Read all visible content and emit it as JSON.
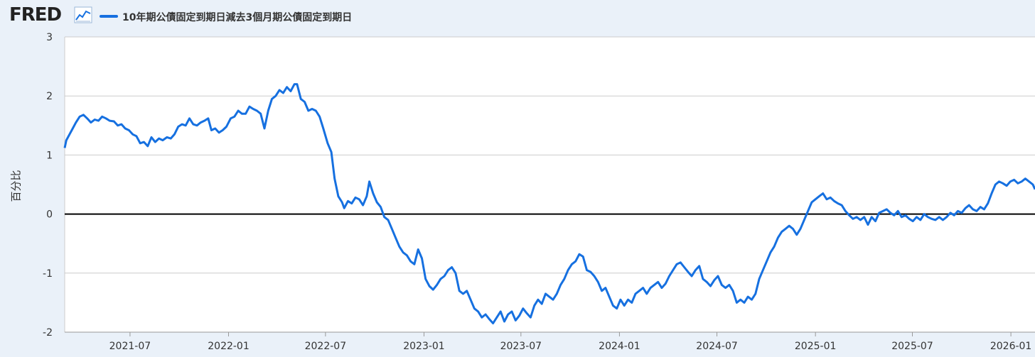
{
  "header": {
    "logo_text": "FRED",
    "logo_icon": "chart-line-icon",
    "legend_label": "10年期公債固定到期日減去3個月期公債固定到期日"
  },
  "colors": {
    "series": "#1670e0",
    "background": "#eaf1f9",
    "plot_background": "#ffffff",
    "grid": "#cccccc",
    "zero_line": "#000000"
  },
  "chart_data": {
    "type": "line",
    "ylabel": "百分比",
    "xlabel": "",
    "ylim": [
      -2,
      3
    ],
    "xlim": [
      "2021-03-01",
      "2026-02-15"
    ],
    "y_ticks": [
      {
        "value": 3,
        "label": "3"
      },
      {
        "value": 2,
        "label": "2"
      },
      {
        "value": 1,
        "label": "1"
      },
      {
        "value": 0,
        "label": "0"
      },
      {
        "value": -1,
        "label": "-1"
      },
      {
        "value": -2,
        "label": "-2"
      }
    ],
    "x_ticks": [
      {
        "date": "2021-07-01",
        "label": "2021-07"
      },
      {
        "date": "2022-01-01",
        "label": "2022-01"
      },
      {
        "date": "2022-07-01",
        "label": "2022-07"
      },
      {
        "date": "2023-01-01",
        "label": "2023-01"
      },
      {
        "date": "2023-07-01",
        "label": "2023-07"
      },
      {
        "date": "2024-01-01",
        "label": "2024-01"
      },
      {
        "date": "2024-07-01",
        "label": "2024-07"
      },
      {
        "date": "2025-01-01",
        "label": "2025-01"
      },
      {
        "date": "2025-07-01",
        "label": "2025-07"
      },
      {
        "date": "2026-01-01",
        "label": "2026-01"
      }
    ],
    "grid": true,
    "series": [
      {
        "name": "10年期公債固定到期日減去3個月期公債固定到期日",
        "points": [
          [
            "2021-03-01",
            1.12
          ],
          [
            "2021-03-04",
            1.25
          ],
          [
            "2021-03-10",
            1.35
          ],
          [
            "2021-03-16",
            1.45
          ],
          [
            "2021-03-22",
            1.55
          ],
          [
            "2021-03-29",
            1.65
          ],
          [
            "2021-04-05",
            1.68
          ],
          [
            "2021-04-12",
            1.62
          ],
          [
            "2021-04-19",
            1.55
          ],
          [
            "2021-04-26",
            1.6
          ],
          [
            "2021-05-03",
            1.58
          ],
          [
            "2021-05-10",
            1.65
          ],
          [
            "2021-05-17",
            1.62
          ],
          [
            "2021-05-24",
            1.58
          ],
          [
            "2021-06-01",
            1.57
          ],
          [
            "2021-06-08",
            1.5
          ],
          [
            "2021-06-15",
            1.52
          ],
          [
            "2021-06-22",
            1.45
          ],
          [
            "2021-06-29",
            1.42
          ],
          [
            "2021-07-06",
            1.35
          ],
          [
            "2021-07-13",
            1.32
          ],
          [
            "2021-07-20",
            1.2
          ],
          [
            "2021-07-27",
            1.22
          ],
          [
            "2021-08-03",
            1.15
          ],
          [
            "2021-08-10",
            1.3
          ],
          [
            "2021-08-17",
            1.22
          ],
          [
            "2021-08-24",
            1.28
          ],
          [
            "2021-08-31",
            1.25
          ],
          [
            "2021-09-08",
            1.3
          ],
          [
            "2021-09-15",
            1.28
          ],
          [
            "2021-09-22",
            1.35
          ],
          [
            "2021-09-29",
            1.48
          ],
          [
            "2021-10-06",
            1.52
          ],
          [
            "2021-10-13",
            1.5
          ],
          [
            "2021-10-20",
            1.62
          ],
          [
            "2021-10-27",
            1.52
          ],
          [
            "2021-11-03",
            1.5
          ],
          [
            "2021-11-10",
            1.55
          ],
          [
            "2021-11-17",
            1.58
          ],
          [
            "2021-11-24",
            1.62
          ],
          [
            "2021-11-30",
            1.42
          ],
          [
            "2021-12-07",
            1.45
          ],
          [
            "2021-12-14",
            1.38
          ],
          [
            "2021-12-21",
            1.42
          ],
          [
            "2021-12-28",
            1.48
          ],
          [
            "2022-01-05",
            1.62
          ],
          [
            "2022-01-12",
            1.65
          ],
          [
            "2022-01-19",
            1.75
          ],
          [
            "2022-01-26",
            1.7
          ],
          [
            "2022-02-02",
            1.7
          ],
          [
            "2022-02-09",
            1.82
          ],
          [
            "2022-02-16",
            1.78
          ],
          [
            "2022-02-23",
            1.75
          ],
          [
            "2022-03-02",
            1.7
          ],
          [
            "2022-03-09",
            1.45
          ],
          [
            "2022-03-16",
            1.75
          ],
          [
            "2022-03-23",
            1.95
          ],
          [
            "2022-03-30",
            2.0
          ],
          [
            "2022-04-06",
            2.1
          ],
          [
            "2022-04-13",
            2.05
          ],
          [
            "2022-04-20",
            2.15
          ],
          [
            "2022-04-27",
            2.08
          ],
          [
            "2022-05-04",
            2.2
          ],
          [
            "2022-05-09",
            2.2
          ],
          [
            "2022-05-16",
            1.95
          ],
          [
            "2022-05-23",
            1.9
          ],
          [
            "2022-05-30",
            1.75
          ],
          [
            "2022-06-06",
            1.78
          ],
          [
            "2022-06-13",
            1.75
          ],
          [
            "2022-06-20",
            1.65
          ],
          [
            "2022-06-27",
            1.45
          ],
          [
            "2022-07-05",
            1.2
          ],
          [
            "2022-07-12",
            1.05
          ],
          [
            "2022-07-18",
            0.6
          ],
          [
            "2022-07-25",
            0.3
          ],
          [
            "2022-08-01",
            0.2
          ],
          [
            "2022-08-05",
            0.1
          ],
          [
            "2022-08-12",
            0.22
          ],
          [
            "2022-08-19",
            0.18
          ],
          [
            "2022-08-26",
            0.28
          ],
          [
            "2022-09-02",
            0.25
          ],
          [
            "2022-09-09",
            0.15
          ],
          [
            "2022-09-16",
            0.3
          ],
          [
            "2022-09-21",
            0.55
          ],
          [
            "2022-09-28",
            0.35
          ],
          [
            "2022-10-05",
            0.2
          ],
          [
            "2022-10-12",
            0.12
          ],
          [
            "2022-10-19",
            -0.05
          ],
          [
            "2022-10-26",
            -0.1
          ],
          [
            "2022-11-02",
            -0.25
          ],
          [
            "2022-11-09",
            -0.4
          ],
          [
            "2022-11-16",
            -0.55
          ],
          [
            "2022-11-23",
            -0.65
          ],
          [
            "2022-11-30",
            -0.7
          ],
          [
            "2022-12-07",
            -0.8
          ],
          [
            "2022-12-14",
            -0.85
          ],
          [
            "2022-12-21",
            -0.6
          ],
          [
            "2022-12-28",
            -0.75
          ],
          [
            "2023-01-04",
            -1.1
          ],
          [
            "2023-01-11",
            -1.22
          ],
          [
            "2023-01-18",
            -1.28
          ],
          [
            "2023-01-25",
            -1.2
          ],
          [
            "2023-02-01",
            -1.1
          ],
          [
            "2023-02-08",
            -1.05
          ],
          [
            "2023-02-15",
            -0.95
          ],
          [
            "2023-02-22",
            -0.9
          ],
          [
            "2023-03-01",
            -1.0
          ],
          [
            "2023-03-08",
            -1.3
          ],
          [
            "2023-03-15",
            -1.35
          ],
          [
            "2023-03-22",
            -1.3
          ],
          [
            "2023-03-29",
            -1.45
          ],
          [
            "2023-04-05",
            -1.6
          ],
          [
            "2023-04-12",
            -1.65
          ],
          [
            "2023-04-19",
            -1.75
          ],
          [
            "2023-04-26",
            -1.7
          ],
          [
            "2023-05-03",
            -1.78
          ],
          [
            "2023-05-10",
            -1.85
          ],
          [
            "2023-05-17",
            -1.75
          ],
          [
            "2023-05-24",
            -1.65
          ],
          [
            "2023-05-31",
            -1.82
          ],
          [
            "2023-06-07",
            -1.7
          ],
          [
            "2023-06-14",
            -1.65
          ],
          [
            "2023-06-21",
            -1.8
          ],
          [
            "2023-06-28",
            -1.72
          ],
          [
            "2023-07-05",
            -1.6
          ],
          [
            "2023-07-12",
            -1.68
          ],
          [
            "2023-07-19",
            -1.75
          ],
          [
            "2023-07-26",
            -1.55
          ],
          [
            "2023-08-02",
            -1.45
          ],
          [
            "2023-08-09",
            -1.52
          ],
          [
            "2023-08-16",
            -1.35
          ],
          [
            "2023-08-23",
            -1.4
          ],
          [
            "2023-08-30",
            -1.45
          ],
          [
            "2023-09-06",
            -1.35
          ],
          [
            "2023-09-13",
            -1.2
          ],
          [
            "2023-09-20",
            -1.1
          ],
          [
            "2023-09-27",
            -0.95
          ],
          [
            "2023-10-04",
            -0.85
          ],
          [
            "2023-10-11",
            -0.8
          ],
          [
            "2023-10-18",
            -0.68
          ],
          [
            "2023-10-25",
            -0.72
          ],
          [
            "2023-11-01",
            -0.95
          ],
          [
            "2023-11-08",
            -0.98
          ],
          [
            "2023-11-15",
            -1.05
          ],
          [
            "2023-11-22",
            -1.15
          ],
          [
            "2023-11-29",
            -1.3
          ],
          [
            "2023-12-06",
            -1.25
          ],
          [
            "2023-12-13",
            -1.4
          ],
          [
            "2023-12-20",
            -1.55
          ],
          [
            "2023-12-27",
            -1.6
          ],
          [
            "2024-01-03",
            -1.45
          ],
          [
            "2024-01-10",
            -1.55
          ],
          [
            "2024-01-17",
            -1.45
          ],
          [
            "2024-01-24",
            -1.5
          ],
          [
            "2024-01-31",
            -1.35
          ],
          [
            "2024-02-07",
            -1.3
          ],
          [
            "2024-02-14",
            -1.25
          ],
          [
            "2024-02-21",
            -1.35
          ],
          [
            "2024-02-28",
            -1.25
          ],
          [
            "2024-03-06",
            -1.2
          ],
          [
            "2024-03-13",
            -1.15
          ],
          [
            "2024-03-20",
            -1.25
          ],
          [
            "2024-03-27",
            -1.18
          ],
          [
            "2024-04-03",
            -1.05
          ],
          [
            "2024-04-10",
            -0.95
          ],
          [
            "2024-04-17",
            -0.85
          ],
          [
            "2024-04-24",
            -0.82
          ],
          [
            "2024-05-01",
            -0.9
          ],
          [
            "2024-05-08",
            -0.98
          ],
          [
            "2024-05-15",
            -1.05
          ],
          [
            "2024-05-22",
            -0.95
          ],
          [
            "2024-05-29",
            -0.88
          ],
          [
            "2024-06-05",
            -1.1
          ],
          [
            "2024-06-12",
            -1.15
          ],
          [
            "2024-06-19",
            -1.22
          ],
          [
            "2024-06-26",
            -1.12
          ],
          [
            "2024-07-03",
            -1.05
          ],
          [
            "2024-07-10",
            -1.2
          ],
          [
            "2024-07-17",
            -1.25
          ],
          [
            "2024-07-24",
            -1.2
          ],
          [
            "2024-07-31",
            -1.3
          ],
          [
            "2024-08-07",
            -1.5
          ],
          [
            "2024-08-14",
            -1.45
          ],
          [
            "2024-08-21",
            -1.5
          ],
          [
            "2024-08-28",
            -1.4
          ],
          [
            "2024-09-04",
            -1.45
          ],
          [
            "2024-09-11",
            -1.35
          ],
          [
            "2024-09-18",
            -1.1
          ],
          [
            "2024-09-25",
            -0.95
          ],
          [
            "2024-10-02",
            -0.8
          ],
          [
            "2024-10-09",
            -0.65
          ],
          [
            "2024-10-16",
            -0.55
          ],
          [
            "2024-10-23",
            -0.4
          ],
          [
            "2024-10-30",
            -0.3
          ],
          [
            "2024-11-06",
            -0.25
          ],
          [
            "2024-11-13",
            -0.2
          ],
          [
            "2024-11-20",
            -0.25
          ],
          [
            "2024-11-27",
            -0.35
          ],
          [
            "2024-12-04",
            -0.25
          ],
          [
            "2024-12-11",
            -0.1
          ],
          [
            "2024-12-18",
            0.05
          ],
          [
            "2024-12-25",
            0.2
          ],
          [
            "2025-01-01",
            0.25
          ],
          [
            "2025-01-08",
            0.3
          ],
          [
            "2025-01-15",
            0.35
          ],
          [
            "2025-01-22",
            0.25
          ],
          [
            "2025-01-29",
            0.28
          ],
          [
            "2025-02-05",
            0.22
          ],
          [
            "2025-02-12",
            0.18
          ],
          [
            "2025-02-19",
            0.15
          ],
          [
            "2025-02-26",
            0.05
          ],
          [
            "2025-03-05",
            -0.02
          ],
          [
            "2025-03-12",
            -0.08
          ],
          [
            "2025-03-19",
            -0.05
          ],
          [
            "2025-03-26",
            -0.1
          ],
          [
            "2025-04-02",
            -0.05
          ],
          [
            "2025-04-09",
            -0.18
          ],
          [
            "2025-04-16",
            -0.05
          ],
          [
            "2025-04-23",
            -0.12
          ],
          [
            "2025-04-30",
            0.02
          ],
          [
            "2025-05-07",
            0.05
          ],
          [
            "2025-05-14",
            0.08
          ],
          [
            "2025-05-21",
            0.02
          ],
          [
            "2025-05-28",
            -0.02
          ],
          [
            "2025-06-04",
            0.05
          ],
          [
            "2025-06-11",
            -0.05
          ],
          [
            "2025-06-18",
            -0.02
          ],
          [
            "2025-06-25",
            -0.08
          ],
          [
            "2025-07-02",
            -0.12
          ],
          [
            "2025-07-09",
            -0.05
          ],
          [
            "2025-07-16",
            -0.1
          ],
          [
            "2025-07-23",
            0.0
          ],
          [
            "2025-07-30",
            -0.05
          ],
          [
            "2025-08-06",
            -0.08
          ],
          [
            "2025-08-13",
            -0.1
          ],
          [
            "2025-08-20",
            -0.05
          ],
          [
            "2025-08-27",
            -0.1
          ],
          [
            "2025-09-03",
            -0.05
          ],
          [
            "2025-09-10",
            0.02
          ],
          [
            "2025-09-17",
            -0.02
          ],
          [
            "2025-09-24",
            0.05
          ],
          [
            "2025-10-01",
            0.02
          ],
          [
            "2025-10-08",
            0.1
          ],
          [
            "2025-10-15",
            0.15
          ],
          [
            "2025-10-22",
            0.08
          ],
          [
            "2025-10-29",
            0.05
          ],
          [
            "2025-11-05",
            0.12
          ],
          [
            "2025-11-12",
            0.08
          ],
          [
            "2025-11-19",
            0.18
          ],
          [
            "2025-11-26",
            0.35
          ],
          [
            "2025-12-03",
            0.5
          ],
          [
            "2025-12-10",
            0.55
          ],
          [
            "2025-12-17",
            0.52
          ],
          [
            "2025-12-24",
            0.48
          ],
          [
            "2025-12-31",
            0.55
          ],
          [
            "2026-01-07",
            0.58
          ],
          [
            "2026-01-14",
            0.52
          ],
          [
            "2026-01-21",
            0.55
          ],
          [
            "2026-01-28",
            0.6
          ],
          [
            "2026-02-04",
            0.55
          ],
          [
            "2026-02-11",
            0.5
          ],
          [
            "2026-02-15",
            0.42
          ]
        ]
      }
    ]
  }
}
